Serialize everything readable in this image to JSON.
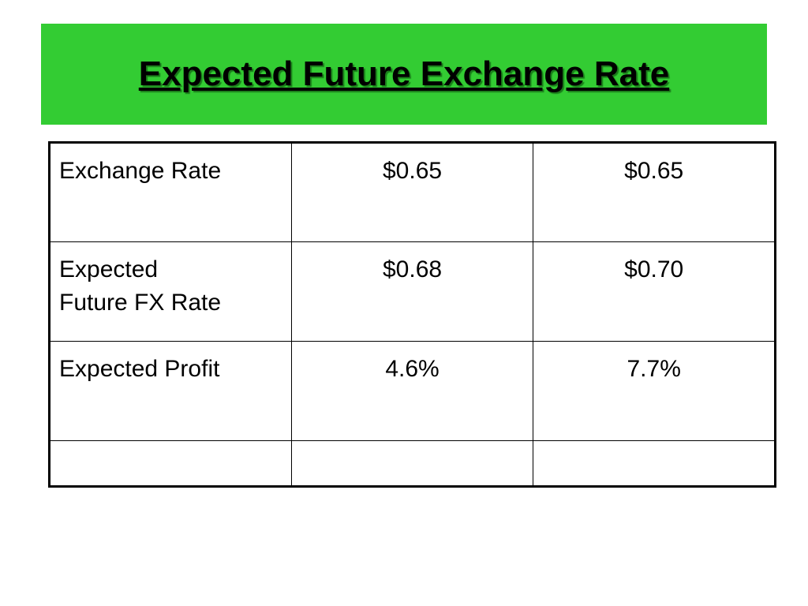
{
  "header": {
    "title": "Expected Future Exchange Rate"
  },
  "table": {
    "rows": [
      [
        "Exchange Rate",
        "$0.65",
        "$0.65"
      ],
      [
        "Expected\nFuture FX Rate",
        "$0.68",
        "$0.70"
      ],
      [
        "Expected Profit",
        "4.6%",
        "7.7%"
      ]
    ]
  }
}
